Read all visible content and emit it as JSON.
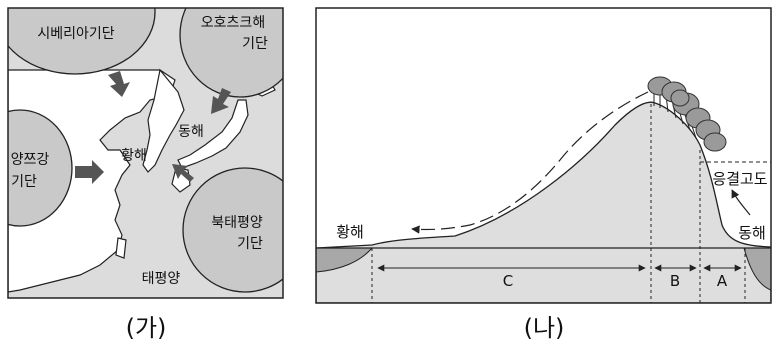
{
  "panel_ga": {
    "caption": "(가)",
    "air_masses": {
      "siberia": "시베리아기단",
      "okhotsk_line1": "오호츠크해",
      "okhotsk_line2": "기단",
      "yangtze_line1": "양쯔강",
      "yangtze_line2": "기단",
      "north_pacific_line1": "북태평양",
      "north_pacific_line2": "기단"
    },
    "seas": {
      "east_sea": "동해",
      "yellow_sea": "황해",
      "pacific": "태평양"
    }
  },
  "panel_na": {
    "caption": "(나)",
    "labels": {
      "yellow_sea": "황해",
      "east_sea": "동해",
      "condensation_level": "응결고도"
    },
    "sections": {
      "a": "A",
      "b": "B",
      "c": "C"
    }
  },
  "colors": {
    "air_mass_fill": "#c9c9c9",
    "land_fill": "#ffffff",
    "sea_fill": "#dcdcdc",
    "arrow_fill": "#555555",
    "terrain_fill": "#dedede",
    "water_fill": "#a8a8a8"
  }
}
